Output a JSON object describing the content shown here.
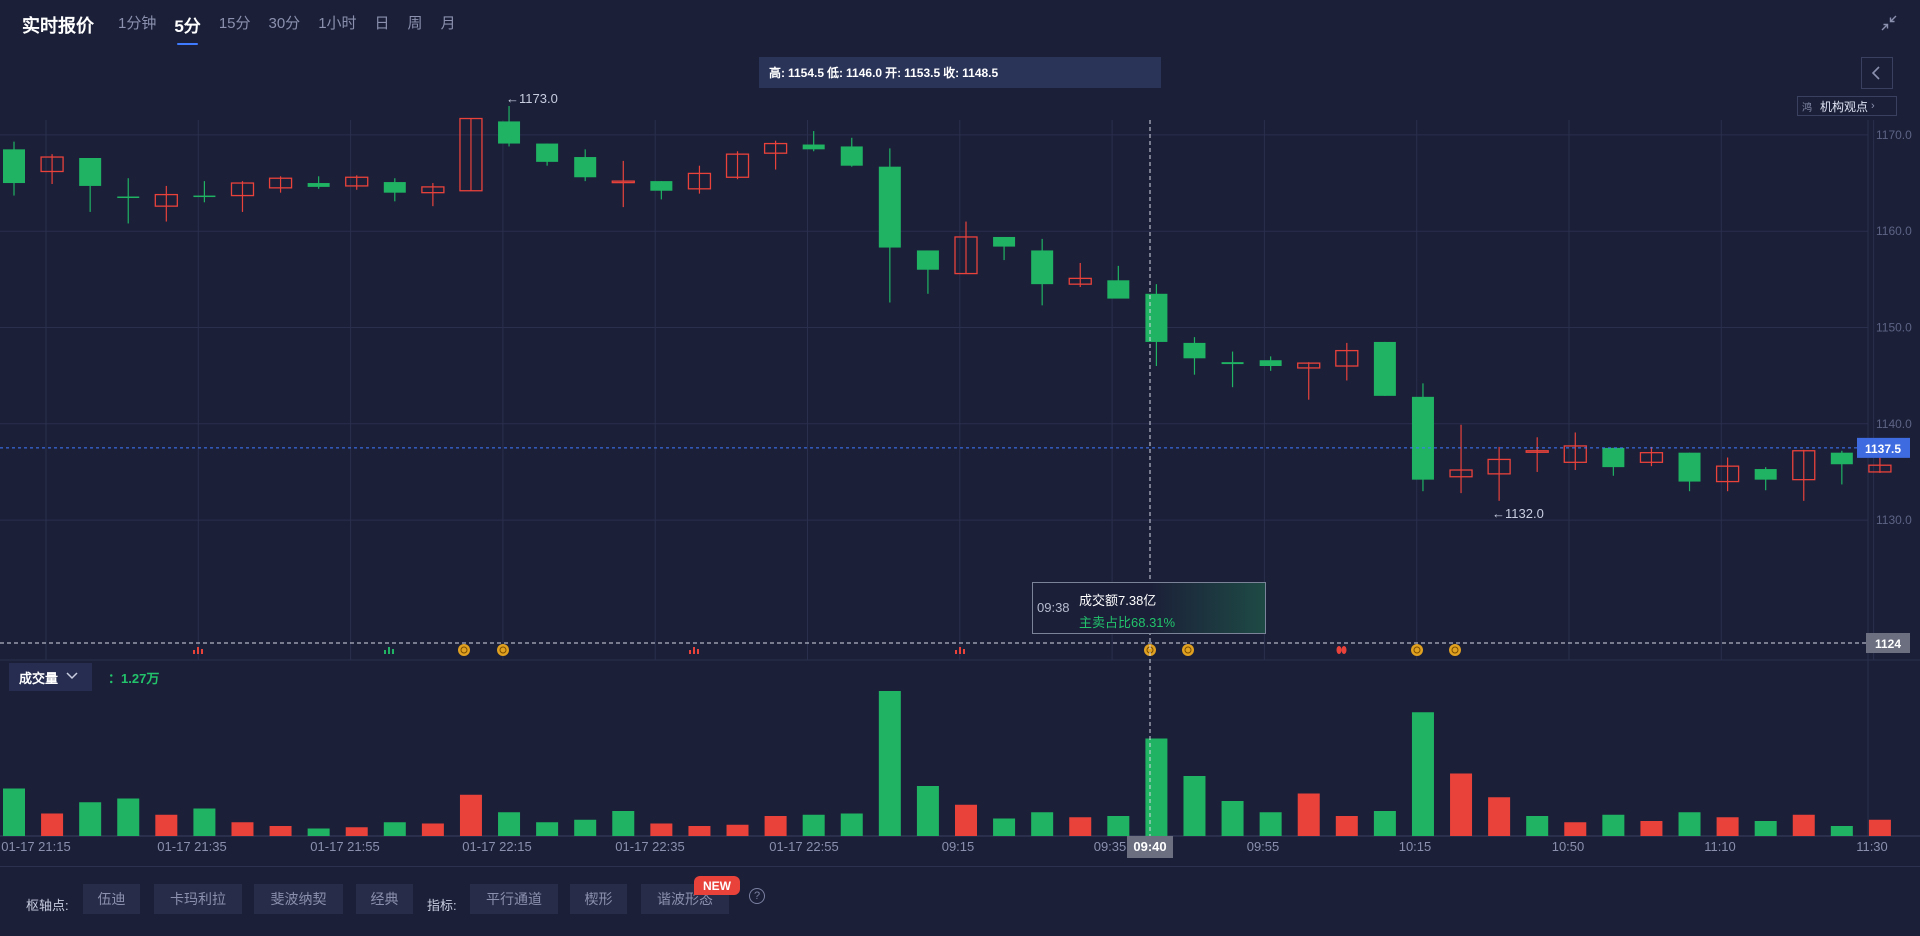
{
  "header": {
    "title": "实时报价",
    "tabs": [
      "1分钟",
      "5分",
      "15分",
      "30分",
      "1小时",
      "日",
      "周",
      "月"
    ],
    "active_tab": "5分"
  },
  "ohlc": {
    "high_label": "高:",
    "high": "1154.5",
    "low_label": "低:",
    "low": "1146.0",
    "open_label": "开:",
    "open": "1153.5",
    "close_label": "收:",
    "close": "1148.5"
  },
  "institution_button": {
    "small": "鸿",
    "label": "机构观点"
  },
  "price_axis": {
    "ticks": [
      "1170.0",
      "1160.0",
      "1150.0",
      "1140.0",
      "1130.0"
    ],
    "current_price": "1137.5",
    "level_line": "1124"
  },
  "annotations": {
    "high_marker": "1173.0",
    "low_marker": "1132.0"
  },
  "tooltip": {
    "time": "09:38",
    "line1": "成交额7.38亿",
    "line2": "主卖占比68.31%"
  },
  "volume": {
    "selector_label": "成交量",
    "value": "1.27万"
  },
  "time_axis": {
    "labels": [
      "01-17 21:15",
      "01-17 21:35",
      "01-17 21:55",
      "01-17 22:15",
      "01-17 22:35",
      "01-17 22:55",
      "09:15",
      "09:35",
      "09:55",
      "10:15",
      "10:50",
      "11:10",
      "11:30"
    ],
    "crosshair_label": "09:40"
  },
  "bottom": {
    "pivot_label": "枢轴点:",
    "pivot_options": [
      "伍迪",
      "卡玛利拉",
      "斐波纳契",
      "经典"
    ],
    "indicator_label": "指标:",
    "indicator_options": [
      "平行通道",
      "楔形",
      "谐波形态"
    ],
    "new_badge": "NEW",
    "help": "?"
  },
  "colors": {
    "up": "#e8423b",
    "down": "#1fb363",
    "background": "#1b1f38",
    "accent": "#3f7bff"
  },
  "chart_data": {
    "type": "candlestick",
    "ylim": [
      1122,
      1178
    ],
    "candles": [
      {
        "o": 1168.5,
        "h": 1169.3,
        "l": 1163.7,
        "c": 1165.0
      },
      {
        "o": 1166.2,
        "h": 1168.0,
        "l": 1164.9,
        "c": 1167.7
      },
      {
        "o": 1167.6,
        "h": 1167.6,
        "l": 1162.0,
        "c": 1164.7
      },
      {
        "o": 1163.6,
        "h": 1165.5,
        "l": 1160.8,
        "c": 1163.5
      },
      {
        "o": 1162.6,
        "h": 1164.7,
        "l": 1161.0,
        "c": 1163.8
      },
      {
        "o": 1163.7,
        "h": 1165.2,
        "l": 1163.0,
        "c": 1163.6
      },
      {
        "o": 1163.7,
        "h": 1165.2,
        "l": 1162.0,
        "c": 1165.0
      },
      {
        "o": 1164.5,
        "h": 1165.7,
        "l": 1164.0,
        "c": 1165.5
      },
      {
        "o": 1165.0,
        "h": 1165.7,
        "l": 1164.4,
        "c": 1164.6
      },
      {
        "o": 1164.7,
        "h": 1165.8,
        "l": 1164.3,
        "c": 1165.6
      },
      {
        "o": 1165.1,
        "h": 1165.5,
        "l": 1163.1,
        "c": 1164.0
      },
      {
        "o": 1164.0,
        "h": 1165.0,
        "l": 1162.6,
        "c": 1164.6
      },
      {
        "o": 1164.2,
        "h": 1171.7,
        "l": 1164.2,
        "c": 1171.7
      },
      {
        "o": 1171.4,
        "h": 1173.0,
        "l": 1168.8,
        "c": 1169.1
      },
      {
        "o": 1169.1,
        "h": 1169.1,
        "l": 1166.8,
        "c": 1167.2
      },
      {
        "o": 1167.7,
        "h": 1168.5,
        "l": 1165.2,
        "c": 1165.6
      },
      {
        "o": 1165.2,
        "h": 1167.3,
        "l": 1162.5,
        "c": 1165.2
      },
      {
        "o": 1165.2,
        "h": 1165.2,
        "l": 1163.3,
        "c": 1164.2
      },
      {
        "o": 1164.4,
        "h": 1166.8,
        "l": 1163.9,
        "c": 1166.0
      },
      {
        "o": 1165.6,
        "h": 1168.3,
        "l": 1165.4,
        "c": 1168.0
      },
      {
        "o": 1168.1,
        "h": 1169.4,
        "l": 1166.4,
        "c": 1169.1
      },
      {
        "o": 1169.0,
        "h": 1170.4,
        "l": 1168.3,
        "c": 1168.5
      },
      {
        "o": 1168.8,
        "h": 1169.7,
        "l": 1166.7,
        "c": 1166.8
      },
      {
        "o": 1166.7,
        "h": 1168.6,
        "l": 1152.6,
        "c": 1158.3
      },
      {
        "o": 1158.0,
        "h": 1158.0,
        "l": 1153.5,
        "c": 1156.0
      },
      {
        "o": 1155.6,
        "h": 1161.0,
        "l": 1155.6,
        "c": 1159.4
      },
      {
        "o": 1159.4,
        "h": 1159.4,
        "l": 1157.0,
        "c": 1158.4
      },
      {
        "o": 1158.0,
        "h": 1159.2,
        "l": 1152.3,
        "c": 1154.5
      },
      {
        "o": 1154.5,
        "h": 1156.7,
        "l": 1154.2,
        "c": 1155.1
      },
      {
        "o": 1154.9,
        "h": 1156.4,
        "l": 1153.5,
        "c": 1153.0
      },
      {
        "o": 1153.5,
        "h": 1154.5,
        "l": 1146.0,
        "c": 1148.5
      },
      {
        "o": 1148.4,
        "h": 1149.0,
        "l": 1145.1,
        "c": 1146.8
      },
      {
        "o": 1146.4,
        "h": 1147.5,
        "l": 1143.8,
        "c": 1146.2
      },
      {
        "o": 1146.6,
        "h": 1147.0,
        "l": 1145.5,
        "c": 1146.0
      },
      {
        "o": 1145.8,
        "h": 1146.4,
        "l": 1142.5,
        "c": 1146.3
      },
      {
        "o": 1146.0,
        "h": 1148.4,
        "l": 1144.5,
        "c": 1147.6
      },
      {
        "o": 1148.5,
        "h": 1148.5,
        "l": 1142.9,
        "c": 1142.9
      },
      {
        "o": 1142.8,
        "h": 1144.2,
        "l": 1133.0,
        "c": 1134.2
      },
      {
        "o": 1134.5,
        "h": 1139.9,
        "l": 1132.8,
        "c": 1135.2
      },
      {
        "o": 1134.8,
        "h": 1137.6,
        "l": 1132.0,
        "c": 1136.3
      },
      {
        "o": 1137.2,
        "h": 1138.6,
        "l": 1135.0,
        "c": 1137.2
      },
      {
        "o": 1136.0,
        "h": 1139.1,
        "l": 1135.2,
        "c": 1137.7
      },
      {
        "o": 1137.5,
        "h": 1137.5,
        "l": 1134.6,
        "c": 1135.5
      },
      {
        "o": 1136.0,
        "h": 1137.6,
        "l": 1135.6,
        "c": 1137.0
      },
      {
        "o": 1137.0,
        "h": 1137.0,
        "l": 1133.0,
        "c": 1134.0
      },
      {
        "o": 1134.0,
        "h": 1136.5,
        "l": 1133.0,
        "c": 1135.6
      },
      {
        "o": 1135.3,
        "h": 1135.5,
        "l": 1133.1,
        "c": 1134.2
      },
      {
        "o": 1134.2,
        "h": 1137.3,
        "l": 1132.0,
        "c": 1137.2
      },
      {
        "o": 1137.0,
        "h": 1137.2,
        "l": 1133.7,
        "c": 1135.8
      },
      {
        "o": 1135.0,
        "h": 1136.7,
        "l": 1134.9,
        "c": 1135.7
      }
    ],
    "volume": [
      38,
      18,
      27,
      30,
      17,
      22,
      11,
      8,
      6,
      7,
      11,
      10,
      33,
      19,
      11,
      13,
      20,
      10,
      8,
      9,
      16,
      17,
      18,
      116,
      40,
      25,
      14,
      19,
      15,
      16,
      78,
      48,
      28,
      19,
      34,
      16,
      20,
      99,
      50,
      31,
      16,
      11,
      17,
      12,
      19,
      15,
      12,
      17,
      8,
      13
    ],
    "volume_colors": [
      "down",
      "up",
      "down",
      "down",
      "up",
      "down",
      "up",
      "up",
      "down",
      "up",
      "down",
      "up",
      "up",
      "down",
      "down",
      "down",
      "down",
      "up",
      "up",
      "up",
      "up",
      "down",
      "down",
      "down",
      "down",
      "up",
      "down",
      "down",
      "up",
      "down",
      "down",
      "down",
      "down",
      "down",
      "up",
      "up",
      "down",
      "down",
      "up",
      "up",
      "down",
      "up",
      "down",
      "up",
      "down",
      "up",
      "down",
      "up",
      "down",
      "up"
    ],
    "signal_markers": [
      "bar-red",
      "bar-green",
      "coin",
      "coin",
      "bar-red",
      "bar-red",
      "coin",
      "coin",
      "drop-red",
      "coin",
      "coin"
    ]
  }
}
